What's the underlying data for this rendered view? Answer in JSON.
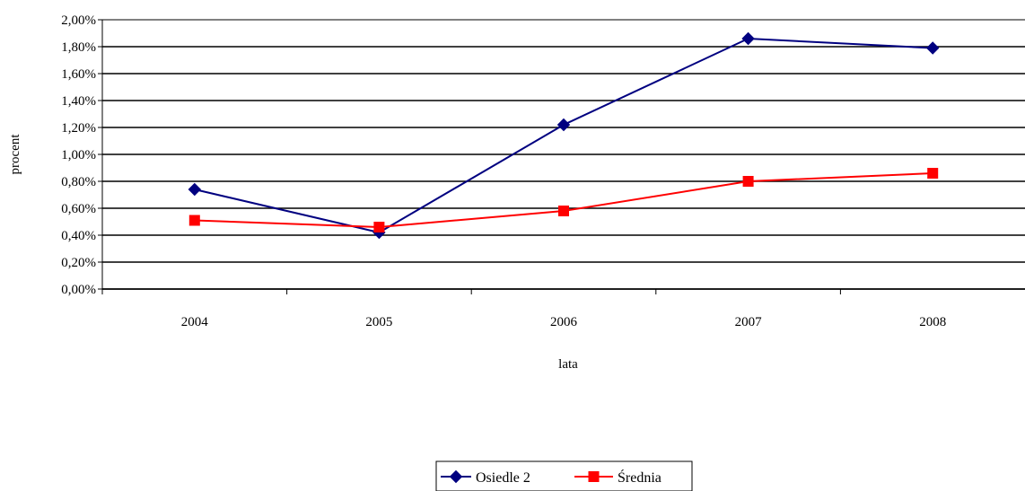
{
  "chart_data": {
    "type": "line",
    "xlabel": "lata",
    "ylabel": "procent",
    "categories": [
      "2004",
      "2005",
      "2006",
      "2007",
      "2008"
    ],
    "ylim": [
      0,
      2.0
    ],
    "y_ticks": [
      "0,00%",
      "0,20%",
      "0,40%",
      "0,60%",
      "0,80%",
      "1,00%",
      "1,20%",
      "1,40%",
      "1,60%",
      "1,80%",
      "2,00%"
    ],
    "grid": true,
    "legend_position": "bottom-center",
    "series": [
      {
        "name": "Osiedle 2",
        "values": [
          0.74,
          0.42,
          1.22,
          1.86,
          1.79
        ],
        "color": "#000080",
        "marker": "diamond"
      },
      {
        "name": "Średnia",
        "values": [
          0.51,
          0.46,
          0.58,
          0.8,
          0.86
        ],
        "color": "#ff0000",
        "marker": "square"
      }
    ]
  }
}
